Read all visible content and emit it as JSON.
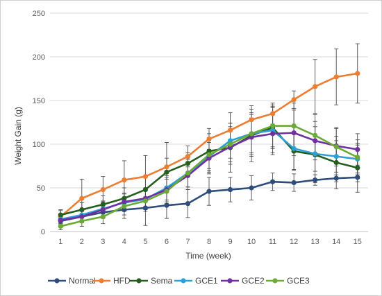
{
  "chart_data": {
    "type": "line",
    "title": "",
    "xlabel": "Time (week)",
    "ylabel": "Weight Gain (g)",
    "x": [
      1,
      2,
      3,
      4,
      5,
      6,
      7,
      8,
      9,
      10,
      11,
      12,
      13,
      14,
      15
    ],
    "xlim": [
      1,
      15
    ],
    "ylim": [
      0,
      250
    ],
    "yticks": [
      0,
      50,
      100,
      150,
      200,
      250
    ],
    "grid": "horizontal",
    "legend_position": "bottom",
    "series": [
      {
        "name": "Normal",
        "color": "#2e4d7b",
        "values": [
          12,
          17,
          22,
          25,
          27,
          30,
          32,
          46,
          48,
          50,
          57,
          56,
          59,
          61,
          62
        ],
        "errors": [
          4,
          6,
          7,
          10,
          20,
          15,
          16,
          16,
          14,
          14,
          10,
          10,
          6,
          4,
          5
        ]
      },
      {
        "name": "HFD",
        "color": "#ed7d31",
        "values": [
          17,
          38,
          48,
          59,
          63,
          74,
          86,
          106,
          116,
          128,
          135,
          151,
          166,
          177,
          181
        ],
        "errors": [
          8,
          22,
          15,
          22,
          24,
          28,
          12,
          12,
          20,
          16,
          12,
          10,
          31,
          32,
          34
        ]
      },
      {
        "name": "Sema",
        "color": "#255e1f",
        "values": [
          19,
          25,
          31,
          38,
          48,
          68,
          78,
          92,
          96,
          110,
          119,
          92,
          88,
          79,
          73
        ],
        "errors": [
          5,
          8,
          10,
          12,
          14,
          16,
          12,
          20,
          28,
          30,
          24,
          22,
          32,
          30,
          28
        ]
      },
      {
        "name": "GCE1",
        "color": "#2b9fd6",
        "values": [
          14,
          19,
          26,
          33,
          37,
          50,
          67,
          86,
          104,
          112,
          116,
          95,
          89,
          86,
          83
        ],
        "errors": [
          5,
          7,
          9,
          10,
          12,
          14,
          16,
          18,
          20,
          24,
          26,
          24,
          20,
          18,
          16
        ]
      },
      {
        "name": "GCE2",
        "color": "#7030a0",
        "values": [
          13,
          17,
          25,
          34,
          38,
          48,
          64,
          84,
          97,
          108,
          112,
          113,
          104,
          98,
          94
        ],
        "errors": [
          5,
          7,
          9,
          10,
          12,
          14,
          16,
          18,
          20,
          22,
          24,
          26,
          22,
          20,
          18
        ]
      },
      {
        "name": "GCE3",
        "color": "#6aaa35",
        "values": [
          6,
          12,
          17,
          29,
          35,
          46,
          67,
          88,
          100,
          112,
          121,
          121,
          110,
          97,
          85
        ],
        "errors": [
          4,
          6,
          8,
          10,
          12,
          14,
          16,
          18,
          20,
          22,
          24,
          26,
          24,
          22,
          20
        ]
      }
    ]
  }
}
